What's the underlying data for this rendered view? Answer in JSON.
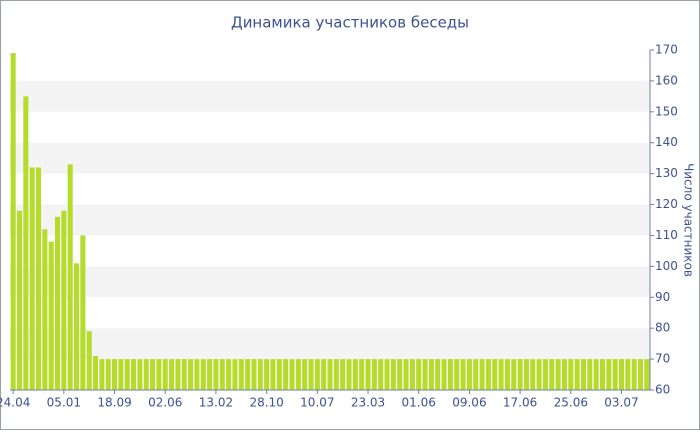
{
  "chart_data": {
    "type": "bar",
    "title": "Динамика участников беседы",
    "y_axis_label": "Число участников",
    "categories": [
      "24.04",
      null,
      null,
      null,
      null,
      null,
      null,
      null,
      "05.01",
      null,
      null,
      null,
      null,
      null,
      null,
      null,
      "18.09",
      null,
      null,
      null,
      null,
      null,
      null,
      null,
      "02.06",
      null,
      null,
      null,
      null,
      null,
      null,
      null,
      "13.02",
      null,
      null,
      null,
      null,
      null,
      null,
      null,
      "28.10",
      null,
      null,
      null,
      null,
      null,
      null,
      null,
      "10.07",
      null,
      null,
      null,
      null,
      null,
      null,
      null,
      "23.03",
      null,
      null,
      null,
      null,
      null,
      null,
      null,
      "01.06",
      null,
      null,
      null,
      null,
      null,
      null,
      null,
      "09.06",
      null,
      null,
      null,
      null,
      null,
      null,
      null,
      "17.06",
      null,
      null,
      null,
      null,
      null,
      null,
      null,
      "25.06",
      null,
      null,
      null,
      null,
      null,
      null,
      null,
      "03.07",
      null,
      null,
      null,
      null
    ],
    "values": [
      169,
      118,
      155,
      132,
      132,
      112,
      108,
      116,
      118,
      133,
      101,
      110,
      79,
      71,
      70,
      70,
      70,
      70,
      70,
      70,
      70,
      70,
      70,
      70,
      70,
      70,
      70,
      70,
      70,
      70,
      70,
      70,
      70,
      70,
      70,
      70,
      70,
      70,
      70,
      70,
      70,
      70,
      70,
      70,
      70,
      70,
      70,
      70,
      70,
      70,
      70,
      70,
      70,
      70,
      70,
      70,
      70,
      70,
      70,
      70,
      70,
      70,
      70,
      70,
      70,
      70,
      70,
      70,
      70,
      70,
      70,
      70,
      70,
      70,
      70,
      70,
      70,
      70,
      70,
      70,
      70,
      70,
      70,
      70,
      70,
      70,
      70,
      70,
      70,
      70,
      70,
      70,
      70,
      70,
      70,
      70,
      70,
      70,
      70,
      70,
      70
    ],
    "color": "#b5dc2c",
    "ylim": [
      60,
      170
    ],
    "yticks": [
      60,
      70,
      80,
      90,
      100,
      110,
      120,
      130,
      140,
      150,
      160,
      170
    ],
    "grid": true
  }
}
